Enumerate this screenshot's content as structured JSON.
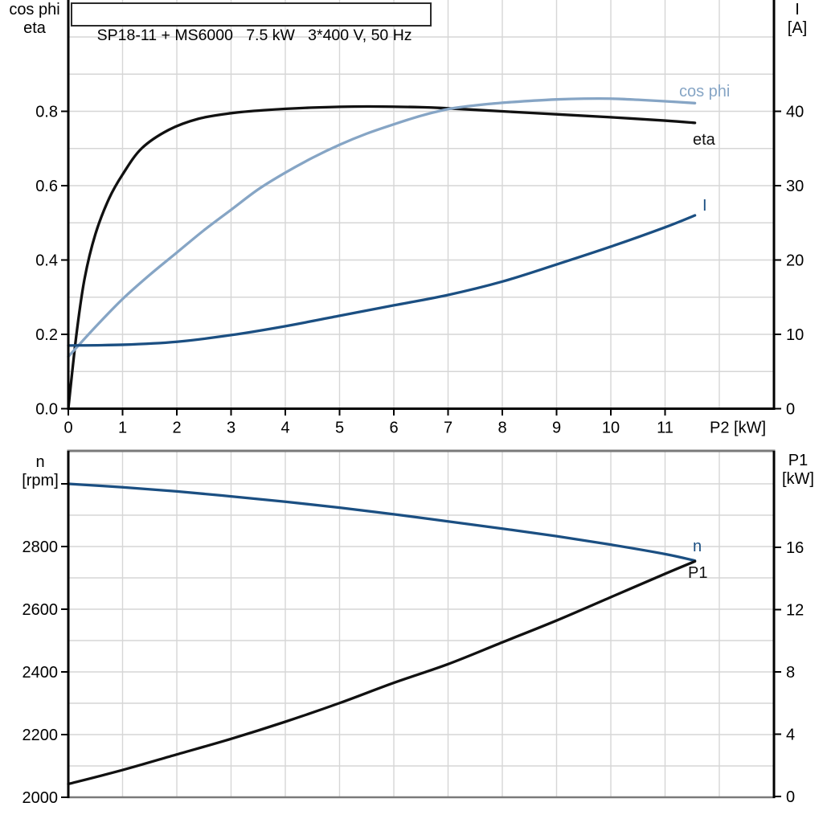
{
  "title": {
    "text": "SP18-11 + MS6000   7.5 kW   3*400 V, 50 Hz"
  },
  "colors": {
    "black": "#111111",
    "light_blue": "#86a5c5",
    "dark_blue": "#1b4f82",
    "grid": "#d6d6d6",
    "axis": "#000000",
    "gray_border": "#7a7a7a",
    "text": "#000000"
  },
  "axis_headers": {
    "top_left": {
      "line1": "cos phi",
      "line2": "eta"
    },
    "top_right": {
      "line1": "I",
      "line2": "[A]"
    },
    "bottom_left": {
      "line1": "n",
      "line2": "[rpm]"
    },
    "bottom_right": {
      "line1": "P1",
      "line2": "[kW]"
    }
  },
  "chart_data": [
    {
      "id": "top",
      "type": "line",
      "title": "SP18-11 + MS6000   7.5 kW   3*400 V, 50 Hz",
      "xlabel": "P2 [kW]",
      "x_axis": {
        "ticks": [
          0,
          1,
          2,
          3,
          4,
          5,
          6,
          7,
          8,
          9,
          10,
          11
        ],
        "grid_max": 12,
        "axis_max": 13
      },
      "left_axis": {
        "name": "cos phi / eta",
        "ticks": [
          {
            "v": 0.0,
            "label": "0.0"
          },
          {
            "v": 0.2,
            "label": "0.2"
          },
          {
            "v": 0.4,
            "label": "0.4"
          },
          {
            "v": 0.6,
            "label": "0.6"
          },
          {
            "v": 0.8,
            "label": "0.8"
          }
        ],
        "range": [
          0,
          1.1
        ],
        "grid_step": 0.1
      },
      "right_axis": {
        "name": "I [A]",
        "ticks": [
          {
            "v": 0,
            "label": "0"
          },
          {
            "v": 10,
            "label": "10"
          },
          {
            "v": 20,
            "label": "20"
          },
          {
            "v": 30,
            "label": "30"
          },
          {
            "v": 40,
            "label": "40"
          }
        ],
        "full_scale": 50
      },
      "series": [
        {
          "name": "eta",
          "label": "eta",
          "axis": "left",
          "color_key": "black",
          "x": [
            0,
            0.15,
            0.3,
            0.5,
            0.75,
            1,
            1.35,
            1.85,
            2.4,
            3,
            3.6,
            4.5,
            5.5,
            6.5,
            7,
            8,
            9,
            10,
            11,
            11.55
          ],
          "y": [
            0,
            0.2,
            0.35,
            0.47,
            0.565,
            0.63,
            0.7,
            0.75,
            0.78,
            0.795,
            0.803,
            0.81,
            0.813,
            0.811,
            0.808,
            0.8,
            0.792,
            0.784,
            0.775,
            0.769
          ]
        },
        {
          "name": "cos phi",
          "label": "cos phi",
          "axis": "left",
          "color_key": "light_blue",
          "x": [
            0,
            0.5,
            1,
            1.5,
            2,
            2.5,
            3,
            3.5,
            4,
            4.5,
            5,
            5.5,
            6,
            6.5,
            7,
            7.5,
            8,
            8.5,
            9,
            9.5,
            10,
            10.5,
            11,
            11.55
          ],
          "y": [
            0.14,
            0.22,
            0.295,
            0.36,
            0.42,
            0.48,
            0.535,
            0.59,
            0.635,
            0.675,
            0.71,
            0.74,
            0.765,
            0.788,
            0.806,
            0.816,
            0.823,
            0.828,
            0.832,
            0.834,
            0.834,
            0.831,
            0.827,
            0.822
          ]
        },
        {
          "name": "I",
          "label": "I",
          "axis": "right",
          "color_key": "dark_blue",
          "x": [
            0,
            1,
            2,
            3,
            4,
            5,
            6,
            7,
            8,
            9,
            10,
            11,
            11.55
          ],
          "y": [
            8.5,
            8.6,
            9.0,
            9.9,
            11.1,
            12.5,
            13.9,
            15.3,
            17.1,
            19.4,
            21.8,
            24.4,
            26.0
          ]
        }
      ]
    },
    {
      "id": "bottom",
      "type": "line",
      "xlabel": "",
      "x_axis": {
        "ticks": [],
        "grid_max": 12,
        "axis_max": 13
      },
      "left_axis": {
        "name": "n [rpm]",
        "ticks": [
          {
            "v": 2000,
            "label": "2000"
          },
          {
            "v": 2200,
            "label": "2200"
          },
          {
            "v": 2400,
            "label": "2400"
          },
          {
            "v": 2600,
            "label": "2600"
          },
          {
            "v": 2800,
            "label": "2800"
          },
          {
            "v": 3000,
            "label": ""
          }
        ],
        "range": [
          2000,
          3100
        ],
        "grid_step": 100
      },
      "right_axis": {
        "name": "P1 [kW]",
        "ticks": [
          {
            "v": 0,
            "label": "0"
          },
          {
            "v": 4,
            "label": "4"
          },
          {
            "v": 8,
            "label": "8"
          },
          {
            "v": 12,
            "label": "12"
          },
          {
            "v": 16,
            "label": "16"
          }
        ]
      },
      "series": [
        {
          "name": "n",
          "label": "n",
          "axis": "left",
          "color_key": "dark_blue",
          "x": [
            0,
            1,
            2,
            3,
            4,
            5,
            6,
            7,
            8,
            9,
            10,
            11,
            11.55
          ],
          "y": [
            3000,
            2989,
            2976,
            2960,
            2943,
            2924,
            2903,
            2880,
            2857,
            2833,
            2806,
            2776,
            2755
          ]
        },
        {
          "name": "P1",
          "label": "P1",
          "axis": "right",
          "color_key": "black",
          "x": [
            0,
            1,
            2,
            3,
            4,
            5,
            6,
            7,
            8,
            9,
            10,
            11,
            11.55
          ],
          "y": [
            0.8,
            1.7,
            2.7,
            3.7,
            4.8,
            6.0,
            7.3,
            8.5,
            9.9,
            11.3,
            12.8,
            14.3,
            15.1
          ]
        }
      ]
    }
  ]
}
